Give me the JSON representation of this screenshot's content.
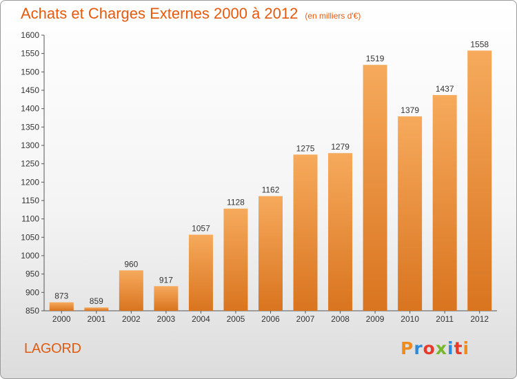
{
  "header": {
    "title": "Achats et Charges Externes 2000 à 2012",
    "unit": "(en milliers d'€)"
  },
  "footer": {
    "commune": "LAGORD",
    "logo_text": "Proxiti"
  },
  "colors": {
    "title": "#e35a0e",
    "bar_light": "#f6aa5c",
    "bar_dark": "#d9741f",
    "logo_letters": [
      "#f08a1c",
      "#2e8ad8",
      "#e8392a",
      "#76b82a",
      "#2e8ad8",
      "#e8392a",
      "#f08a1c"
    ]
  },
  "chart_data": {
    "type": "bar",
    "categories": [
      "2000",
      "2001",
      "2002",
      "2003",
      "2004",
      "2005",
      "2006",
      "2007",
      "2008",
      "2009",
      "2010",
      "2011",
      "2012"
    ],
    "values": [
      873,
      859,
      960,
      917,
      1057,
      1128,
      1162,
      1275,
      1279,
      1519,
      1379,
      1437,
      1558
    ],
    "title": "Achats et Charges Externes 2000 à 2012",
    "ylim": [
      850,
      1600
    ],
    "yticks": [
      850,
      900,
      950,
      1000,
      1050,
      1100,
      1150,
      1200,
      1250,
      1300,
      1350,
      1400,
      1450,
      1500,
      1550,
      1600
    ],
    "grid": false,
    "data_labels": true
  }
}
